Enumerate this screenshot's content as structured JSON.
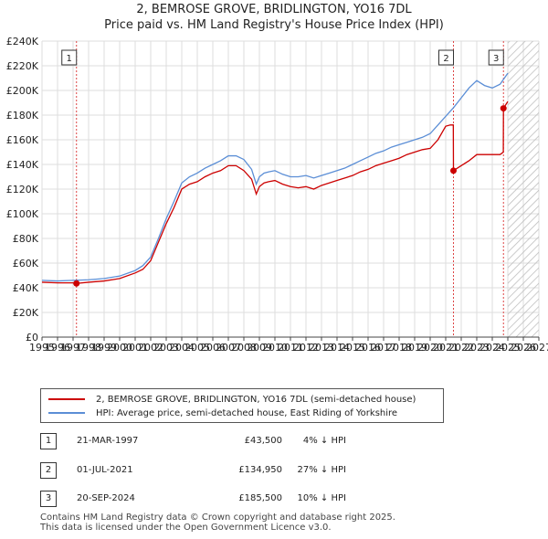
{
  "header": {
    "title_line1": "2, BEMROSE GROVE, BRIDLINGTON, YO16 7DL",
    "title_line2": "Price paid vs. HM Land Registry's House Price Index (HPI)"
  },
  "colors": {
    "property": "#cc0000",
    "hpi": "#5b8ed6",
    "marker": "#cc0000",
    "sale_line": "#dd4444"
  },
  "chart_data": {
    "type": "line",
    "title": "2, BEMROSE GROVE, BRIDLINGTON, YO16 7DL - Price paid vs. HM Land Registry's House Price Index (HPI)",
    "xlim": [
      1995,
      2027
    ],
    "ylim": [
      0,
      240000
    ],
    "x_ticks": [
      1995,
      1996,
      1997,
      1998,
      1999,
      2000,
      2001,
      2002,
      2003,
      2004,
      2005,
      2006,
      2007,
      2008,
      2009,
      2010,
      2011,
      2012,
      2013,
      2014,
      2015,
      2016,
      2017,
      2018,
      2019,
      2020,
      2021,
      2022,
      2023,
      2024,
      2025,
      2026,
      2027
    ],
    "y_ticks": [
      0,
      20000,
      40000,
      60000,
      80000,
      100000,
      120000,
      140000,
      160000,
      180000,
      200000,
      220000,
      240000
    ],
    "y_tick_labels": [
      "£0",
      "£20K",
      "£40K",
      "£60K",
      "£80K",
      "£100K",
      "£120K",
      "£140K",
      "£160K",
      "£180K",
      "£200K",
      "£220K",
      "£240K"
    ],
    "grid": true,
    "future_hatch_from": 2025.0,
    "series": [
      {
        "name": "2, BEMROSE GROVE, BRIDLINGTON, YO16 7DL (semi-detached house)",
        "x": [
          1995.0,
          1996.0,
          1997.0,
          1997.22,
          1998.0,
          1999.0,
          2000.0,
          2001.0,
          2001.5,
          2002.0,
          2002.5,
          2003.0,
          2003.5,
          2004.0,
          2004.5,
          2005.0,
          2005.5,
          2006.0,
          2006.5,
          2007.0,
          2007.5,
          2008.0,
          2008.5,
          2008.8,
          2009.0,
          2009.3,
          2009.6,
          2010.0,
          2010.5,
          2011.0,
          2011.5,
          2012.0,
          2012.5,
          2013.0,
          2013.5,
          2014.0,
          2014.5,
          2015.0,
          2015.5,
          2016.0,
          2016.5,
          2017.0,
          2017.5,
          2018.0,
          2018.5,
          2019.0,
          2019.5,
          2020.0,
          2020.5,
          2021.0,
          2021.3,
          2021.49,
          2021.5,
          2022.0,
          2022.5,
          2023.0,
          2023.5,
          2024.0,
          2024.5,
          2024.71,
          2024.72,
          2025.0
        ],
        "y": [
          44500,
          44000,
          44000,
          43500,
          44500,
          45500,
          47500,
          52000,
          55000,
          62000,
          77000,
          92000,
          105000,
          120000,
          124000,
          126000,
          130000,
          133000,
          135000,
          139000,
          139000,
          135000,
          128000,
          116000,
          122000,
          125000,
          126000,
          127000,
          124000,
          122000,
          121000,
          122000,
          120000,
          123000,
          125000,
          127000,
          129000,
          131000,
          134000,
          136000,
          139000,
          141000,
          143000,
          145000,
          148000,
          150000,
          152000,
          153000,
          160000,
          171000,
          172000,
          172000,
          134950,
          139000,
          143000,
          148000,
          148000,
          148000,
          148000,
          150000,
          185500,
          191000
        ]
      },
      {
        "name": "HPI: Average price, semi-detached house, East Riding of Yorkshire",
        "x": [
          1995.0,
          1996.0,
          1997.0,
          1998.0,
          1999.0,
          2000.0,
          2001.0,
          2001.5,
          2002.0,
          2002.5,
          2003.0,
          2003.5,
          2004.0,
          2004.5,
          2005.0,
          2005.5,
          2006.0,
          2006.5,
          2007.0,
          2007.5,
          2008.0,
          2008.5,
          2008.8,
          2009.0,
          2009.3,
          2009.6,
          2010.0,
          2010.5,
          2011.0,
          2011.5,
          2012.0,
          2012.5,
          2013.0,
          2013.5,
          2014.0,
          2014.5,
          2015.0,
          2015.5,
          2016.0,
          2016.5,
          2017.0,
          2017.5,
          2018.0,
          2018.5,
          2019.0,
          2019.5,
          2020.0,
          2020.5,
          2021.0,
          2021.5,
          2022.0,
          2022.5,
          2023.0,
          2023.5,
          2024.0,
          2024.5,
          2025.0
        ],
        "y": [
          46000,
          45500,
          46000,
          46500,
          47500,
          49500,
          54000,
          58000,
          65000,
          80000,
          96000,
          110000,
          125000,
          130000,
          133000,
          137000,
          140000,
          143000,
          147000,
          147000,
          144000,
          136000,
          124000,
          130000,
          133000,
          134000,
          135000,
          132000,
          130000,
          130000,
          131000,
          129000,
          131000,
          133000,
          135000,
          137000,
          140000,
          143000,
          146000,
          149000,
          151000,
          154000,
          156000,
          158000,
          160000,
          162000,
          165000,
          172000,
          179000,
          186000,
          194000,
          202000,
          208000,
          204000,
          202000,
          205000,
          214000
        ]
      }
    ],
    "annotations": [
      {
        "label": "1",
        "x": 1997.22,
        "y": 43500
      },
      {
        "label": "2",
        "x": 2021.5,
        "y": 134950
      },
      {
        "label": "3",
        "x": 2024.72,
        "y": 185500
      }
    ]
  },
  "legend": {
    "property_label": "2, BEMROSE GROVE, BRIDLINGTON, YO16 7DL (semi-detached house)",
    "hpi_label": "HPI: Average price, semi-detached house, East Riding of Yorkshire"
  },
  "sales": [
    {
      "num": "1",
      "date": "21-MAR-1997",
      "price": "£43,500",
      "hpi": "4% ↓ HPI"
    },
    {
      "num": "2",
      "date": "01-JUL-2021",
      "price": "£134,950",
      "hpi": "27% ↓ HPI"
    },
    {
      "num": "3",
      "date": "20-SEP-2024",
      "price": "£185,500",
      "hpi": "10% ↓ HPI"
    }
  ],
  "footer": {
    "line1": "Contains HM Land Registry data © Crown copyright and database right 2025.",
    "line2": "This data is licensed under the Open Government Licence v3.0."
  }
}
